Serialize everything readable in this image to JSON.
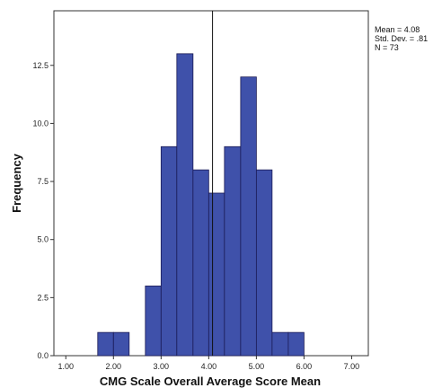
{
  "chart_data": {
    "type": "bar",
    "subtype": "histogram",
    "xlabel": "CMG Scale Overall Average Score Mean",
    "ylabel": "Frequency",
    "xlim": [
      0.75,
      7.35
    ],
    "ylim": [
      0,
      14.85
    ],
    "x_ticks": [
      1.0,
      2.0,
      3.0,
      4.0,
      5.0,
      6.0,
      7.0
    ],
    "x_tick_labels": [
      "1.00",
      "2.00",
      "3.00",
      "4.00",
      "5.00",
      "6.00",
      "7.00"
    ],
    "y_ticks": [
      0,
      2.5,
      5.0,
      7.5,
      10.0,
      12.5
    ],
    "y_tick_labels": [
      "0.0",
      "2.5",
      "5.0",
      "7.5",
      "10.0",
      "12.5"
    ],
    "bin_width": 0.333,
    "bins": [
      {
        "start": 1.67,
        "end": 2.0,
        "count": 1
      },
      {
        "start": 2.0,
        "end": 2.33,
        "count": 1
      },
      {
        "start": 2.67,
        "end": 3.0,
        "count": 3
      },
      {
        "start": 3.0,
        "end": 3.33,
        "count": 9
      },
      {
        "start": 3.33,
        "end": 3.67,
        "count": 13
      },
      {
        "start": 3.67,
        "end": 4.0,
        "count": 8
      },
      {
        "start": 4.0,
        "end": 4.33,
        "count": 7
      },
      {
        "start": 4.33,
        "end": 4.67,
        "count": 9
      },
      {
        "start": 4.67,
        "end": 5.0,
        "count": 12
      },
      {
        "start": 5.0,
        "end": 5.33,
        "count": 8
      },
      {
        "start": 5.33,
        "end": 5.67,
        "count": 1
      },
      {
        "start": 5.67,
        "end": 6.0,
        "count": 1
      }
    ],
    "mean_line": 4.08,
    "stats": [
      "Mean = 4.08",
      "Std. Dev. = .81",
      "N = 73"
    ],
    "grid": false,
    "bar_color": "#3f51aa",
    "bar_edge_color": "#1a1a55"
  }
}
